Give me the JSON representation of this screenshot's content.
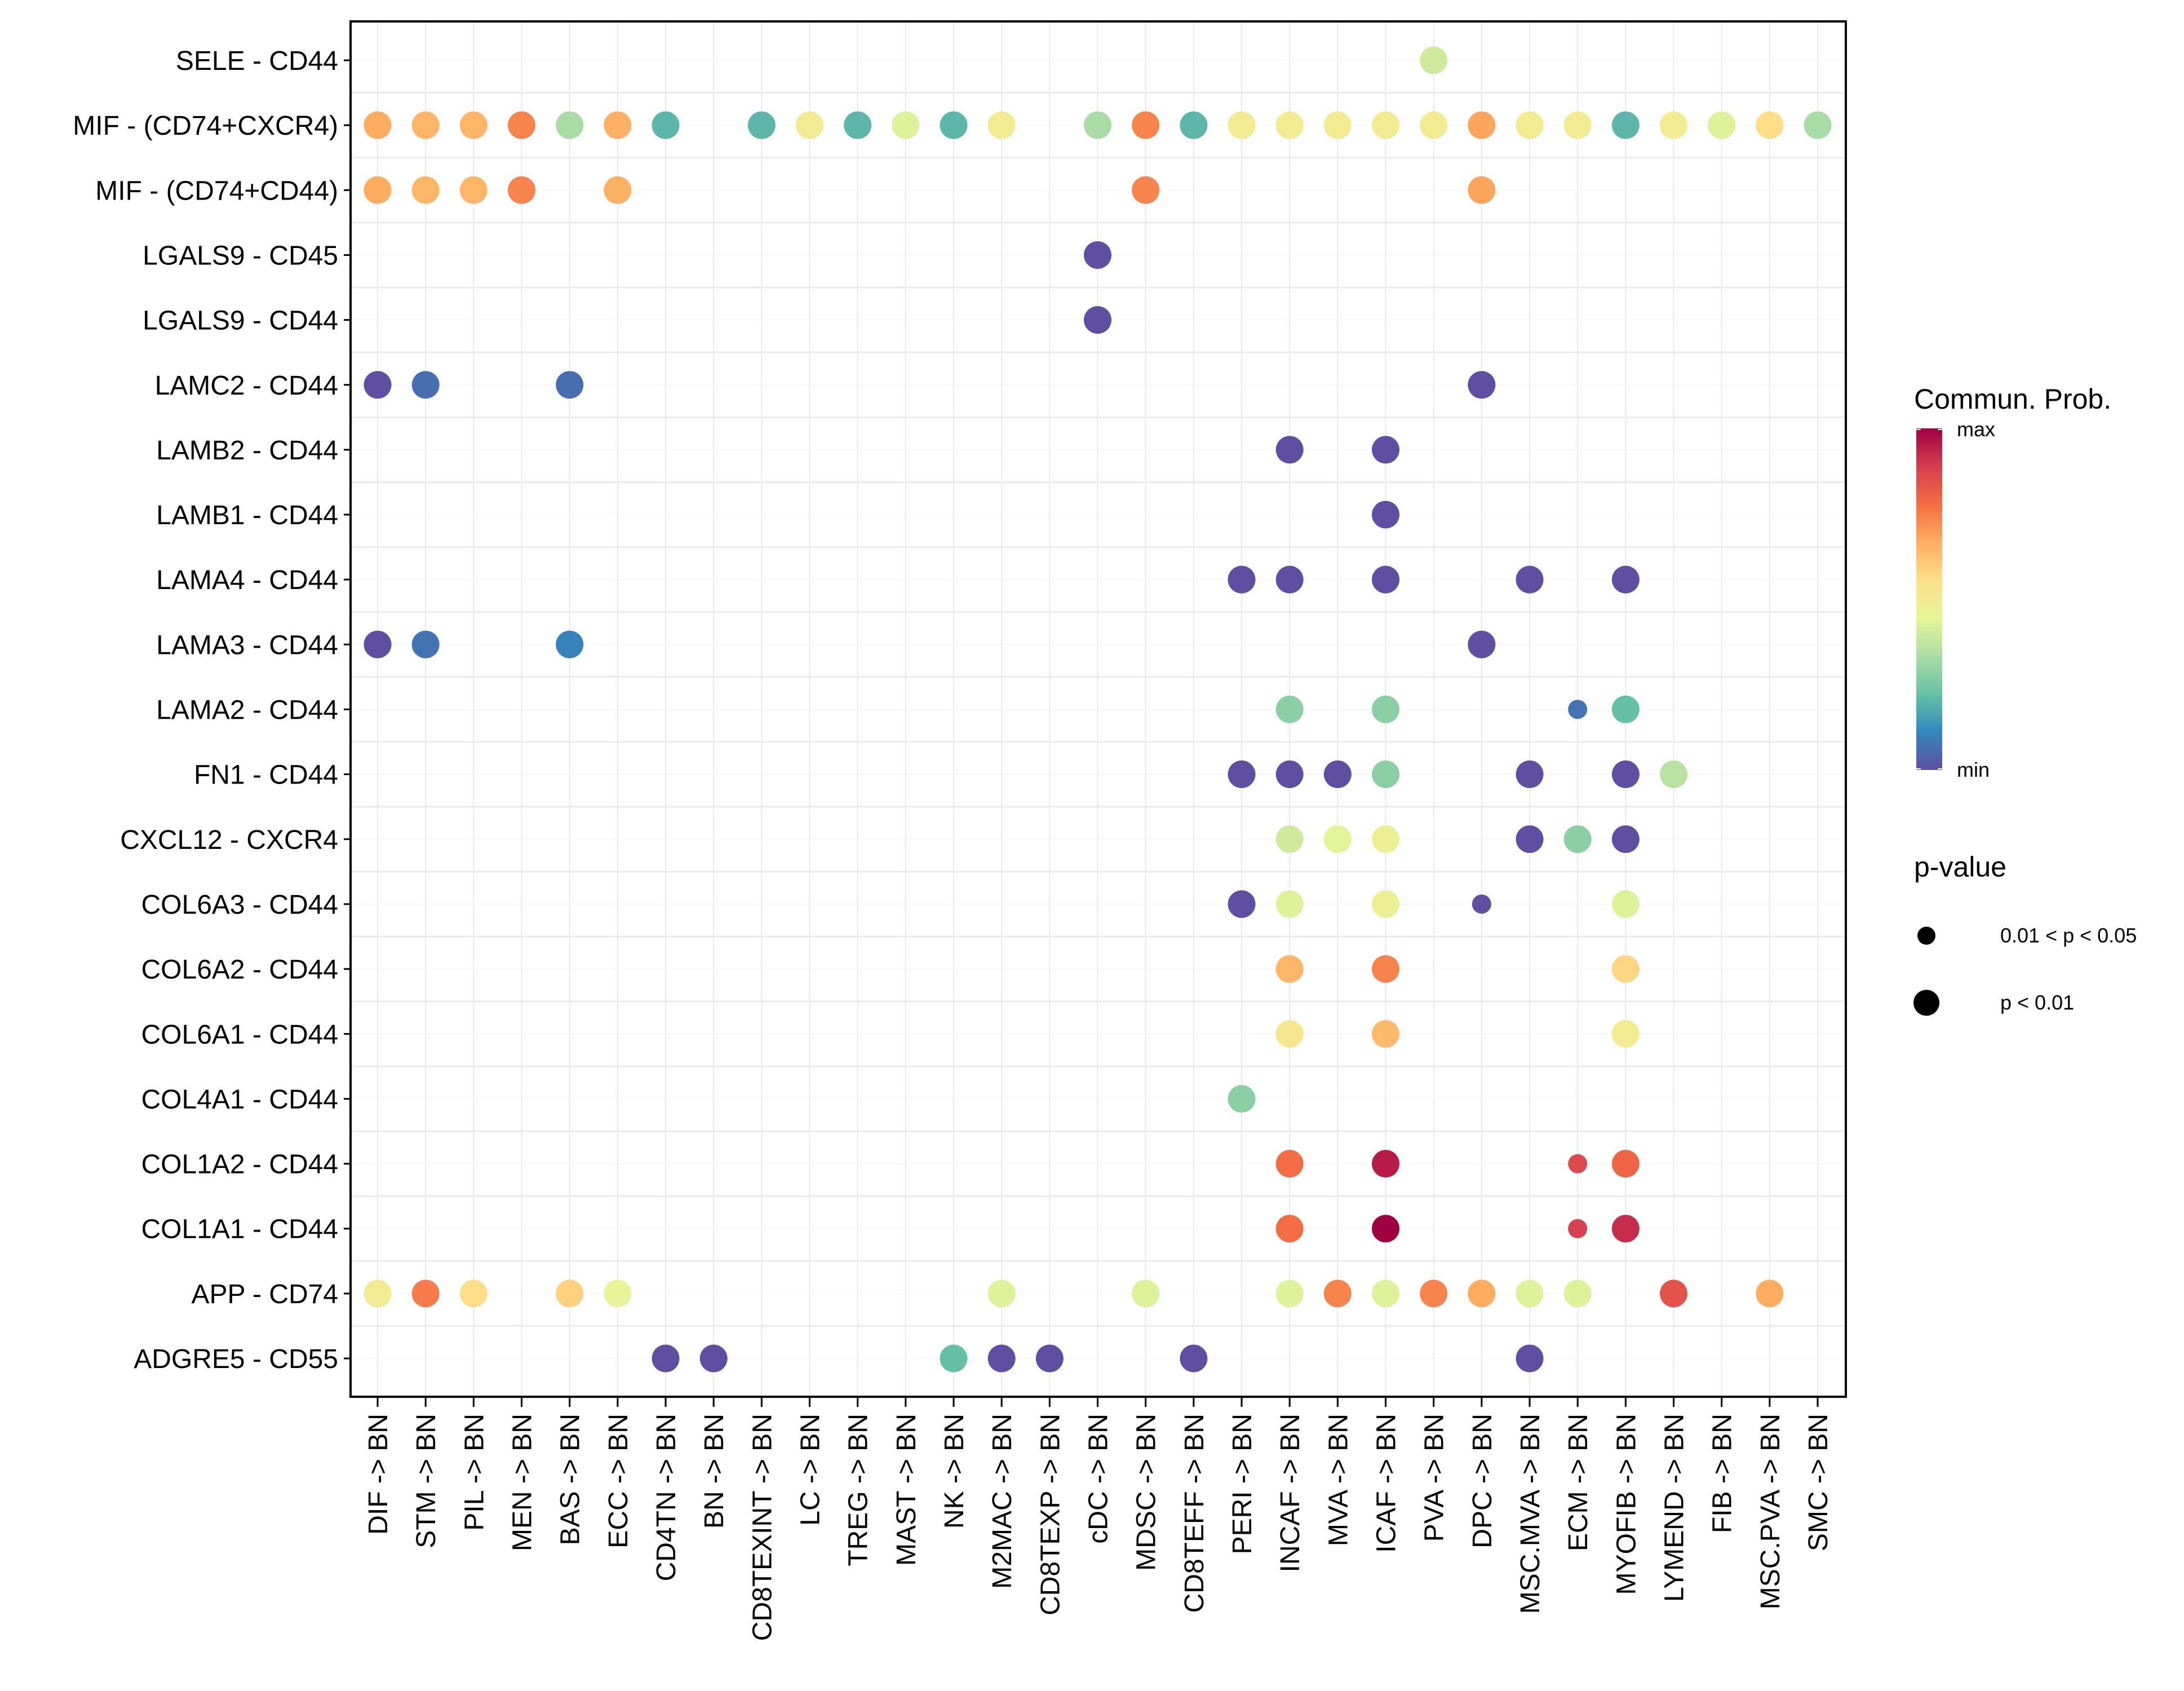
{
  "chart_data": {
    "type": "scatter",
    "subtype": "dot-plot",
    "title": "",
    "xlabel": "",
    "ylabel": "",
    "grid": true,
    "x_categories": [
      "DIF -> BN",
      "STM -> BN",
      "PIL -> BN",
      "MEN -> BN",
      "BAS -> BN",
      "ECC -> BN",
      "CD4TN -> BN",
      "BN -> BN",
      "CD8TEXINT -> BN",
      "LC -> BN",
      "TREG -> BN",
      "MAST -> BN",
      "NK -> BN",
      "M2MAC -> BN",
      "CD8TEXP -> BN",
      "cDC -> BN",
      "MDSC -> BN",
      "CD8TEFF -> BN",
      "PERI -> BN",
      "INCAF -> BN",
      "MVA -> BN",
      "ICAF -> BN",
      "PVA -> BN",
      "DPC -> BN",
      "MSC.MVA -> BN",
      "ECM -> BN",
      "MYOFIB -> BN",
      "LYMEND -> BN",
      "FIB -> BN",
      "MSC.PVA -> BN",
      "SMC -> BN"
    ],
    "y_categories": [
      "SELE - CD44",
      "MIF - (CD74+CXCR4)",
      "MIF - (CD74+CD44)",
      "LGALS9 - CD45",
      "LGALS9 - CD44",
      "LAMC2 - CD44",
      "LAMB2 - CD44",
      "LAMB1 - CD44",
      "LAMA4 - CD44",
      "LAMA3 - CD44",
      "LAMA2 - CD44",
      "FN1 - CD44",
      "CXCL12 - CXCR4",
      "COL6A3 - CD44",
      "COL6A2 - CD44",
      "COL6A1 - CD44",
      "COL4A1 - CD44",
      "COL1A2 - CD44",
      "COL1A1 - CD44",
      "APP - CD74",
      "ADGRE5 - CD55"
    ],
    "color_legend": {
      "title": "Commun. Prob.",
      "max_label": "max",
      "min_label": "min",
      "palette": "Spectral (reversed)",
      "range": [
        0,
        1
      ]
    },
    "size_legend": {
      "title": "p-value",
      "levels": [
        "0.01 < p < 0.05",
        "p < 0.01"
      ]
    },
    "points": [
      {
        "y": "SELE - CD44",
        "x": "PVA -> BN",
        "value": 0.4,
        "p": "p < 0.01"
      },
      {
        "y": "MIF - (CD74+CXCR4)",
        "x": "DIF -> BN",
        "value": 0.67,
        "p": "p < 0.01"
      },
      {
        "y": "MIF - (CD74+CXCR4)",
        "x": "STM -> BN",
        "value": 0.65,
        "p": "p < 0.01"
      },
      {
        "y": "MIF - (CD74+CXCR4)",
        "x": "PIL -> BN",
        "value": 0.65,
        "p": "p < 0.01"
      },
      {
        "y": "MIF - (CD74+CXCR4)",
        "x": "MEN -> BN",
        "value": 0.74,
        "p": "p < 0.01"
      },
      {
        "y": "MIF - (CD74+CXCR4)",
        "x": "BAS -> BN",
        "value": 0.33,
        "p": "p < 0.01"
      },
      {
        "y": "MIF - (CD74+CXCR4)",
        "x": "ECC -> BN",
        "value": 0.66,
        "p": "p < 0.01"
      },
      {
        "y": "MIF - (CD74+CXCR4)",
        "x": "CD4TN -> BN",
        "value": 0.2,
        "p": "p < 0.01"
      },
      {
        "y": "MIF - (CD74+CXCR4)",
        "x": "CD8TEXINT -> BN",
        "value": 0.2,
        "p": "p < 0.01"
      },
      {
        "y": "MIF - (CD74+CXCR4)",
        "x": "LC -> BN",
        "value": 0.5,
        "p": "p < 0.01"
      },
      {
        "y": "MIF - (CD74+CXCR4)",
        "x": "TREG -> BN",
        "value": 0.2,
        "p": "p < 0.01"
      },
      {
        "y": "MIF - (CD74+CXCR4)",
        "x": "MAST -> BN",
        "value": 0.43,
        "p": "p < 0.01"
      },
      {
        "y": "MIF - (CD74+CXCR4)",
        "x": "NK -> BN",
        "value": 0.2,
        "p": "p < 0.01"
      },
      {
        "y": "MIF - (CD74+CXCR4)",
        "x": "M2MAC -> BN",
        "value": 0.5,
        "p": "p < 0.01"
      },
      {
        "y": "MIF - (CD74+CXCR4)",
        "x": "cDC -> BN",
        "value": 0.33,
        "p": "p < 0.01"
      },
      {
        "y": "MIF - (CD74+CXCR4)",
        "x": "MDSC -> BN",
        "value": 0.74,
        "p": "p < 0.01"
      },
      {
        "y": "MIF - (CD74+CXCR4)",
        "x": "CD8TEFF -> BN",
        "value": 0.2,
        "p": "p < 0.01"
      },
      {
        "y": "MIF - (CD74+CXCR4)",
        "x": "PERI -> BN",
        "value": 0.5,
        "p": "p < 0.01"
      },
      {
        "y": "MIF - (CD74+CXCR4)",
        "x": "INCAF -> BN",
        "value": 0.5,
        "p": "p < 0.01"
      },
      {
        "y": "MIF - (CD74+CXCR4)",
        "x": "MVA -> BN",
        "value": 0.5,
        "p": "p < 0.01"
      },
      {
        "y": "MIF - (CD74+CXCR4)",
        "x": "ICAF -> BN",
        "value": 0.5,
        "p": "p < 0.01"
      },
      {
        "y": "MIF - (CD74+CXCR4)",
        "x": "PVA -> BN",
        "value": 0.5,
        "p": "p < 0.01"
      },
      {
        "y": "MIF - (CD74+CXCR4)",
        "x": "DPC -> BN",
        "value": 0.68,
        "p": "p < 0.01"
      },
      {
        "y": "MIF - (CD74+CXCR4)",
        "x": "MSC.MVA -> BN",
        "value": 0.5,
        "p": "p < 0.01"
      },
      {
        "y": "MIF - (CD74+CXCR4)",
        "x": "ECM -> BN",
        "value": 0.5,
        "p": "p < 0.01"
      },
      {
        "y": "MIF - (CD74+CXCR4)",
        "x": "MYOFIB -> BN",
        "value": 0.2,
        "p": "p < 0.01"
      },
      {
        "y": "MIF - (CD74+CXCR4)",
        "x": "LYMEND -> BN",
        "value": 0.5,
        "p": "p < 0.01"
      },
      {
        "y": "MIF - (CD74+CXCR4)",
        "x": "FIB -> BN",
        "value": 0.43,
        "p": "p < 0.01"
      },
      {
        "y": "MIF - (CD74+CXCR4)",
        "x": "MSC.PVA -> BN",
        "value": 0.56,
        "p": "p < 0.01"
      },
      {
        "y": "MIF - (CD74+CXCR4)",
        "x": "SMC -> BN",
        "value": 0.33,
        "p": "p < 0.01"
      },
      {
        "y": "MIF - (CD74+CD44)",
        "x": "DIF -> BN",
        "value": 0.67,
        "p": "p < 0.01"
      },
      {
        "y": "MIF - (CD74+CD44)",
        "x": "STM -> BN",
        "value": 0.65,
        "p": "p < 0.01"
      },
      {
        "y": "MIF - (CD74+CD44)",
        "x": "PIL -> BN",
        "value": 0.65,
        "p": "p < 0.01"
      },
      {
        "y": "MIF - (CD74+CD44)",
        "x": "MEN -> BN",
        "value": 0.74,
        "p": "p < 0.01"
      },
      {
        "y": "MIF - (CD74+CD44)",
        "x": "ECC -> BN",
        "value": 0.66,
        "p": "p < 0.01"
      },
      {
        "y": "MIF - (CD74+CD44)",
        "x": "MDSC -> BN",
        "value": 0.74,
        "p": "p < 0.01"
      },
      {
        "y": "MIF - (CD74+CD44)",
        "x": "DPC -> BN",
        "value": 0.68,
        "p": "p < 0.01"
      },
      {
        "y": "LGALS9 - CD45",
        "x": "cDC -> BN",
        "value": 0.0,
        "p": "p < 0.01"
      },
      {
        "y": "LGALS9 - CD44",
        "x": "cDC -> BN",
        "value": 0.0,
        "p": "p < 0.01"
      },
      {
        "y": "LAMC2 - CD44",
        "x": "DIF -> BN",
        "value": 0.0,
        "p": "p < 0.01"
      },
      {
        "y": "LAMC2 - CD44",
        "x": "STM -> BN",
        "value": 0.06,
        "p": "p < 0.01"
      },
      {
        "y": "LAMC2 - CD44",
        "x": "BAS -> BN",
        "value": 0.06,
        "p": "p < 0.01"
      },
      {
        "y": "LAMC2 - CD44",
        "x": "DPC -> BN",
        "value": 0.0,
        "p": "p < 0.01"
      },
      {
        "y": "LAMB2 - CD44",
        "x": "INCAF -> BN",
        "value": 0.0,
        "p": "p < 0.01"
      },
      {
        "y": "LAMB2 - CD44",
        "x": "ICAF -> BN",
        "value": 0.0,
        "p": "p < 0.01"
      },
      {
        "y": "LAMB1 - CD44",
        "x": "ICAF -> BN",
        "value": 0.0,
        "p": "p < 0.01"
      },
      {
        "y": "LAMA4 - CD44",
        "x": "PERI -> BN",
        "value": 0.0,
        "p": "p < 0.01"
      },
      {
        "y": "LAMA4 - CD44",
        "x": "INCAF -> BN",
        "value": 0.0,
        "p": "p < 0.01"
      },
      {
        "y": "LAMA4 - CD44",
        "x": "ICAF -> BN",
        "value": 0.0,
        "p": "p < 0.01"
      },
      {
        "y": "LAMA4 - CD44",
        "x": "MSC.MVA -> BN",
        "value": 0.0,
        "p": "p < 0.01"
      },
      {
        "y": "LAMA4 - CD44",
        "x": "MYOFIB -> BN",
        "value": 0.0,
        "p": "p < 0.01"
      },
      {
        "y": "LAMA3 - CD44",
        "x": "DIF -> BN",
        "value": 0.0,
        "p": "p < 0.01"
      },
      {
        "y": "LAMA3 - CD44",
        "x": "STM -> BN",
        "value": 0.07,
        "p": "p < 0.01"
      },
      {
        "y": "LAMA3 - CD44",
        "x": "BAS -> BN",
        "value": 0.1,
        "p": "p < 0.01"
      },
      {
        "y": "LAMA3 - CD44",
        "x": "DPC -> BN",
        "value": 0.0,
        "p": "p < 0.01"
      },
      {
        "y": "LAMA2 - CD44",
        "x": "INCAF -> BN",
        "value": 0.28,
        "p": "p < 0.01"
      },
      {
        "y": "LAMA2 - CD44",
        "x": "ICAF -> BN",
        "value": 0.28,
        "p": "p < 0.01"
      },
      {
        "y": "LAMA2 - CD44",
        "x": "ECM -> BN",
        "value": 0.07,
        "p": "0.01 < p < 0.05"
      },
      {
        "y": "LAMA2 - CD44",
        "x": "MYOFIB -> BN",
        "value": 0.22,
        "p": "p < 0.01"
      },
      {
        "y": "FN1 - CD44",
        "x": "PERI -> BN",
        "value": 0.0,
        "p": "p < 0.01"
      },
      {
        "y": "FN1 - CD44",
        "x": "INCAF -> BN",
        "value": 0.0,
        "p": "p < 0.01"
      },
      {
        "y": "FN1 - CD44",
        "x": "MVA -> BN",
        "value": 0.0,
        "p": "p < 0.01"
      },
      {
        "y": "FN1 - CD44",
        "x": "ICAF -> BN",
        "value": 0.28,
        "p": "p < 0.01"
      },
      {
        "y": "FN1 - CD44",
        "x": "MSC.MVA -> BN",
        "value": 0.0,
        "p": "p < 0.01"
      },
      {
        "y": "FN1 - CD44",
        "x": "MYOFIB -> BN",
        "value": 0.0,
        "p": "p < 0.01"
      },
      {
        "y": "FN1 - CD44",
        "x": "LYMEND -> BN",
        "value": 0.36,
        "p": "p < 0.01"
      },
      {
        "y": "CXCL12 - CXCR4",
        "x": "INCAF -> BN",
        "value": 0.4,
        "p": "p < 0.01"
      },
      {
        "y": "CXCL12 - CXCR4",
        "x": "MVA -> BN",
        "value": 0.44,
        "p": "p < 0.01"
      },
      {
        "y": "CXCL12 - CXCR4",
        "x": "ICAF -> BN",
        "value": 0.47,
        "p": "p < 0.01"
      },
      {
        "y": "CXCL12 - CXCR4",
        "x": "MSC.MVA -> BN",
        "value": 0.0,
        "p": "p < 0.01"
      },
      {
        "y": "CXCL12 - CXCR4",
        "x": "ECM -> BN",
        "value": 0.28,
        "p": "p < 0.01"
      },
      {
        "y": "CXCL12 - CXCR4",
        "x": "MYOFIB -> BN",
        "value": 0.0,
        "p": "p < 0.01"
      },
      {
        "y": "COL6A3 - CD44",
        "x": "PERI -> BN",
        "value": 0.0,
        "p": "p < 0.01"
      },
      {
        "y": "COL6A3 - CD44",
        "x": "INCAF -> BN",
        "value": 0.43,
        "p": "p < 0.01"
      },
      {
        "y": "COL6A3 - CD44",
        "x": "ICAF -> BN",
        "value": 0.47,
        "p": "p < 0.01"
      },
      {
        "y": "COL6A3 - CD44",
        "x": "DPC -> BN",
        "value": 0.0,
        "p": "0.01 < p < 0.05"
      },
      {
        "y": "COL6A3 - CD44",
        "x": "MYOFIB -> BN",
        "value": 0.43,
        "p": "p < 0.01"
      },
      {
        "y": "COL6A2 - CD44",
        "x": "INCAF -> BN",
        "value": 0.65,
        "p": "p < 0.01"
      },
      {
        "y": "COL6A2 - CD44",
        "x": "ICAF -> BN",
        "value": 0.74,
        "p": "p < 0.01"
      },
      {
        "y": "COL6A2 - CD44",
        "x": "MYOFIB -> BN",
        "value": 0.58,
        "p": "p < 0.01"
      },
      {
        "y": "COL6A1 - CD44",
        "x": "INCAF -> BN",
        "value": 0.52,
        "p": "p < 0.01"
      },
      {
        "y": "COL6A1 - CD44",
        "x": "ICAF -> BN",
        "value": 0.64,
        "p": "p < 0.01"
      },
      {
        "y": "COL6A1 - CD44",
        "x": "MYOFIB -> BN",
        "value": 0.5,
        "p": "p < 0.01"
      },
      {
        "y": "COL4A1 - CD44",
        "x": "PERI -> BN",
        "value": 0.28,
        "p": "p < 0.01"
      },
      {
        "y": "COL1A2 - CD44",
        "x": "INCAF -> BN",
        "value": 0.78,
        "p": "p < 0.01"
      },
      {
        "y": "COL1A2 - CD44",
        "x": "ICAF -> BN",
        "value": 0.95,
        "p": "p < 0.01"
      },
      {
        "y": "COL1A2 - CD44",
        "x": "ECM -> BN",
        "value": 0.86,
        "p": "0.01 < p < 0.05"
      },
      {
        "y": "COL1A2 - CD44",
        "x": "MYOFIB -> BN",
        "value": 0.8,
        "p": "p < 0.01"
      },
      {
        "y": "COL1A1 - CD44",
        "x": "INCAF -> BN",
        "value": 0.78,
        "p": "p < 0.01"
      },
      {
        "y": "COL1A1 - CD44",
        "x": "ICAF -> BN",
        "value": 1.0,
        "p": "p < 0.01"
      },
      {
        "y": "COL1A1 - CD44",
        "x": "ECM -> BN",
        "value": 0.88,
        "p": "0.01 < p < 0.05"
      },
      {
        "y": "COL1A1 - CD44",
        "x": "MYOFIB -> BN",
        "value": 0.92,
        "p": "p < 0.01"
      },
      {
        "y": "APP - CD74",
        "x": "DIF -> BN",
        "value": 0.5,
        "p": "p < 0.01"
      },
      {
        "y": "APP - CD74",
        "x": "STM -> BN",
        "value": 0.75,
        "p": "p < 0.01"
      },
      {
        "y": "APP - CD74",
        "x": "PIL -> BN",
        "value": 0.56,
        "p": "p < 0.01"
      },
      {
        "y": "APP - CD74",
        "x": "BAS -> BN",
        "value": 0.59,
        "p": "p < 0.01"
      },
      {
        "y": "APP - CD74",
        "x": "ECC -> BN",
        "value": 0.45,
        "p": "p < 0.01"
      },
      {
        "y": "APP - CD74",
        "x": "M2MAC -> BN",
        "value": 0.43,
        "p": "p < 0.01"
      },
      {
        "y": "APP - CD74",
        "x": "MDSC -> BN",
        "value": 0.43,
        "p": "p < 0.01"
      },
      {
        "y": "APP - CD74",
        "x": "INCAF -> BN",
        "value": 0.43,
        "p": "p < 0.01"
      },
      {
        "y": "APP - CD74",
        "x": "MVA -> BN",
        "value": 0.74,
        "p": "p < 0.01"
      },
      {
        "y": "APP - CD74",
        "x": "ICAF -> BN",
        "value": 0.43,
        "p": "p < 0.01"
      },
      {
        "y": "APP - CD74",
        "x": "PVA -> BN",
        "value": 0.74,
        "p": "p < 0.01"
      },
      {
        "y": "APP - CD74",
        "x": "DPC -> BN",
        "value": 0.67,
        "p": "p < 0.01"
      },
      {
        "y": "APP - CD74",
        "x": "MSC.MVA -> BN",
        "value": 0.43,
        "p": "p < 0.01"
      },
      {
        "y": "APP - CD74",
        "x": "ECM -> BN",
        "value": 0.43,
        "p": "p < 0.01"
      },
      {
        "y": "APP - CD74",
        "x": "LYMEND -> BN",
        "value": 0.84,
        "p": "p < 0.01"
      },
      {
        "y": "APP - CD74",
        "x": "MSC.PVA -> BN",
        "value": 0.67,
        "p": "p < 0.01"
      },
      {
        "y": "ADGRE5 - CD55",
        "x": "CD4TN -> BN",
        "value": 0.0,
        "p": "p < 0.01"
      },
      {
        "y": "ADGRE5 - CD55",
        "x": "BN -> BN",
        "value": 0.0,
        "p": "p < 0.01"
      },
      {
        "y": "ADGRE5 - CD55",
        "x": "NK -> BN",
        "value": 0.22,
        "p": "p < 0.01"
      },
      {
        "y": "ADGRE5 - CD55",
        "x": "M2MAC -> BN",
        "value": 0.0,
        "p": "p < 0.01"
      },
      {
        "y": "ADGRE5 - CD55",
        "x": "CD8TEXP -> BN",
        "value": 0.0,
        "p": "p < 0.01"
      },
      {
        "y": "ADGRE5 - CD55",
        "x": "CD8TEFF -> BN",
        "value": 0.0,
        "p": "p < 0.01"
      },
      {
        "y": "ADGRE5 - CD55",
        "x": "MSC.MVA -> BN",
        "value": 0.0,
        "p": "p < 0.01"
      }
    ]
  },
  "palette_stops": [
    "#5E4FA2",
    "#3288BD",
    "#66C2A5",
    "#ABDDA4",
    "#E6F598",
    "#FEE08B",
    "#FDAE61",
    "#F46D43",
    "#D53E4F",
    "#9E0142"
  ]
}
